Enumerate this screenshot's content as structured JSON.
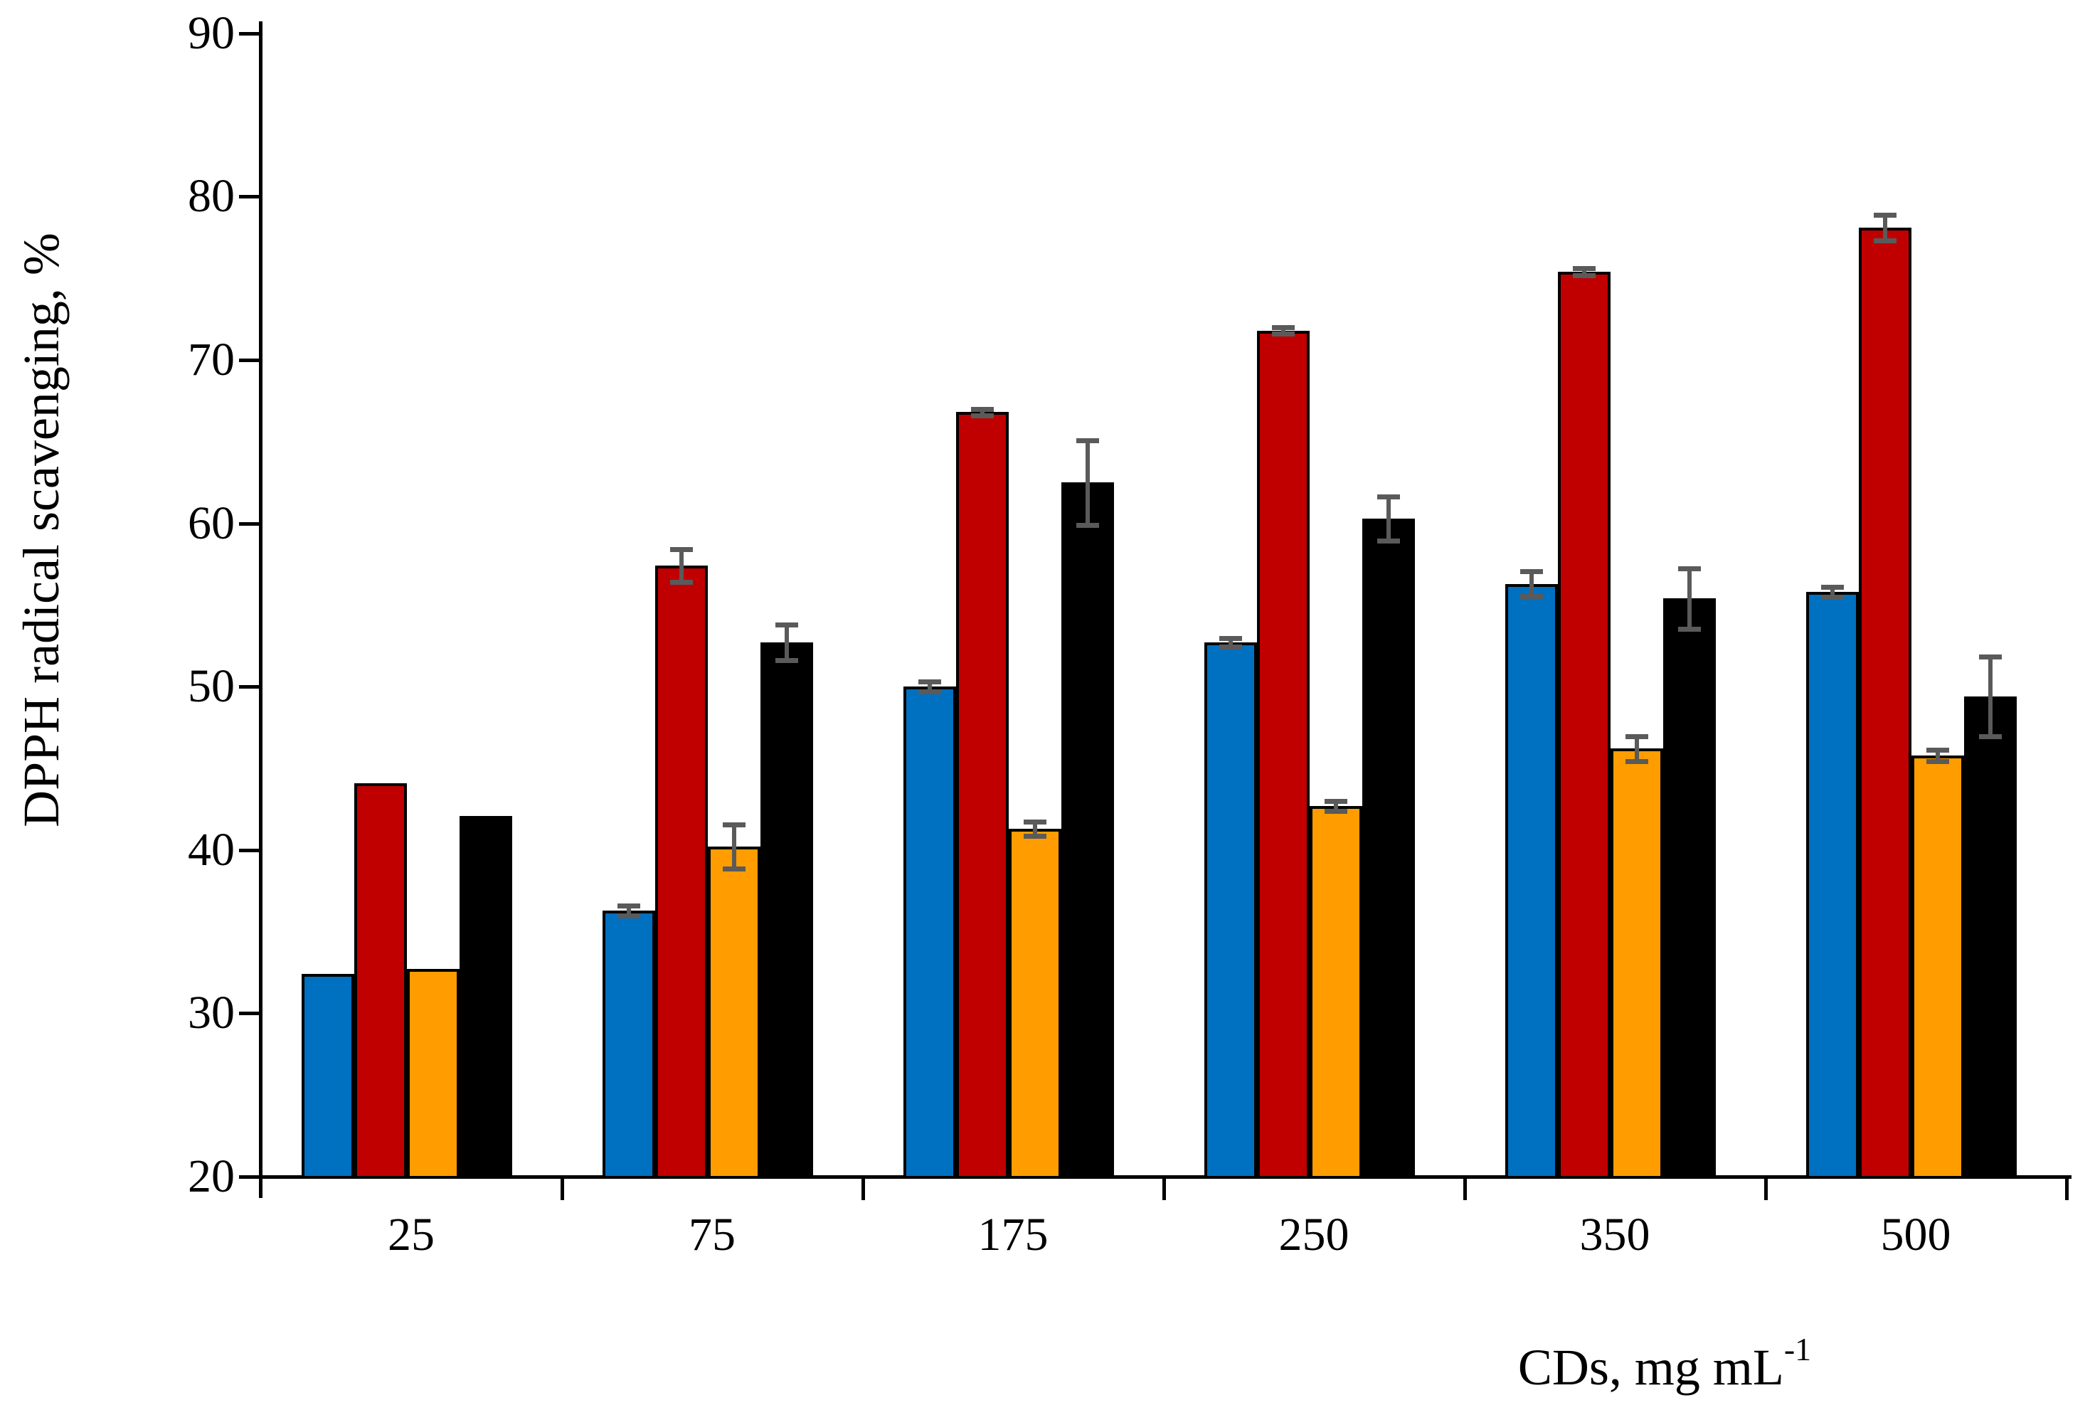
{
  "page": {
    "background": "#FFFFFF"
  },
  "chart_data": {
    "type": "bar",
    "title": "",
    "xlabel": "CDs, mg mL⁻¹",
    "xlabel_main": "CDs, mg mL",
    "xlabel_superscript": "-1",
    "ylabel": "DPPH radical scavenging, %",
    "categories": [
      "25",
      "75",
      "175",
      "250",
      "350",
      "500"
    ],
    "y_ticks": [
      20,
      30,
      40,
      50,
      60,
      70,
      80,
      90
    ],
    "ylim": [
      20,
      90.7
    ],
    "grid": "off",
    "legend": "none",
    "bar_outline_color": "#000000",
    "error_bar_color": "#5A5A5A",
    "series": [
      {
        "name": "blue-series",
        "color": "#0070C0",
        "values": [
          32.4,
          36.3,
          50.0,
          52.7,
          56.3,
          55.8
        ],
        "errors": [
          0,
          0.3,
          0.3,
          0.25,
          0.75,
          0.3
        ]
      },
      {
        "name": "dark-red-series",
        "color": "#C00000",
        "values": [
          44.1,
          57.4,
          66.8,
          71.8,
          75.4,
          78.1
        ],
        "errors": [
          0,
          1.0,
          0.2,
          0.2,
          0.2,
          0.8
        ]
      },
      {
        "name": "orange-series",
        "color": "#FF9D00",
        "values": [
          32.7,
          40.2,
          41.3,
          42.7,
          46.2,
          45.8
        ],
        "errors": [
          0,
          1.35,
          0.45,
          0.3,
          0.75,
          0.35
        ]
      },
      {
        "name": "black-series",
        "color": "#000000",
        "values": [
          42.1,
          52.7,
          62.5,
          60.3,
          55.4,
          49.4
        ],
        "errors": [
          0,
          1.1,
          2.6,
          1.35,
          1.85,
          2.45
        ]
      }
    ]
  }
}
